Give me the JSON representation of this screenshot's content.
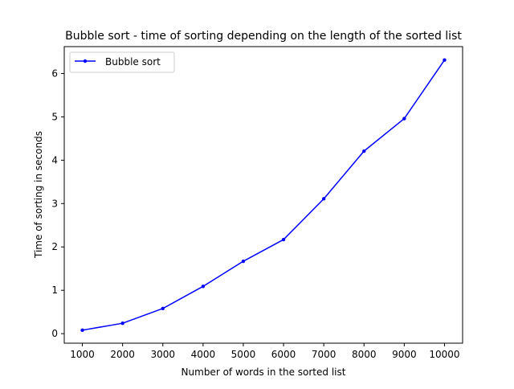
{
  "chart_data": {
    "type": "line",
    "title": "Bubble sort - time of sorting depending on the length of the sorted list",
    "xlabel": "Number of words in the sorted list",
    "ylabel": "Time of sorting in seconds",
    "x": [
      1000,
      2000,
      3000,
      4000,
      5000,
      6000,
      7000,
      8000,
      9000,
      10000
    ],
    "xticks": [
      "1000",
      "2000",
      "3000",
      "4000",
      "5000",
      "6000",
      "7000",
      "8000",
      "9000",
      "10000"
    ],
    "yticks": [
      "0",
      "1",
      "2",
      "3",
      "4",
      "5",
      "6"
    ],
    "ytick_values": [
      0,
      1,
      2,
      3,
      4,
      5,
      6
    ],
    "xlim": [
      550,
      10450
    ],
    "ylim": [
      -0.22,
      6.62
    ],
    "grid": false,
    "legend_position": "upper-left",
    "series": [
      {
        "name": "Bubble sort",
        "color": "#0000ff",
        "marker": "point",
        "values": [
          0.08,
          0.24,
          0.58,
          1.09,
          1.67,
          2.17,
          3.11,
          4.21,
          4.96,
          6.31
        ]
      }
    ]
  }
}
